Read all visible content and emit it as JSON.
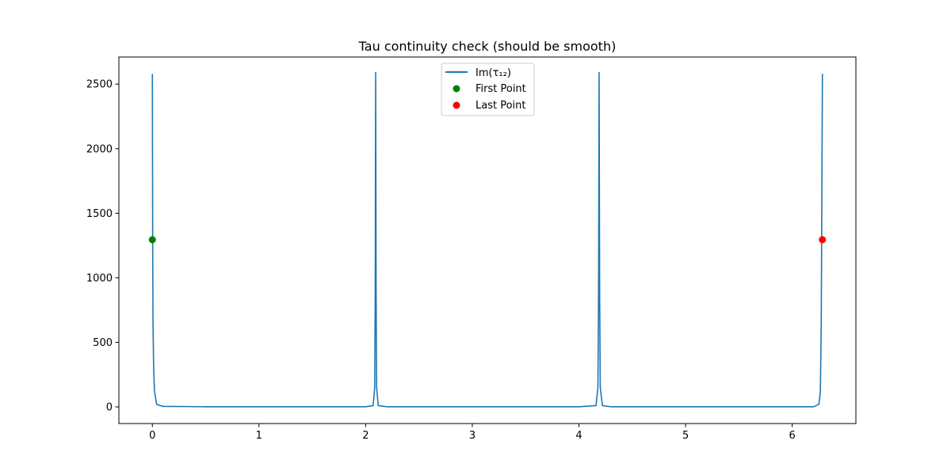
{
  "chart_data": {
    "type": "line",
    "title": "Tau continuity check (should be smooth)",
    "xlabel": "",
    "ylabel": "",
    "xlim": [
      -0.314,
      6.597
    ],
    "ylim": [
      -129,
      2710
    ],
    "xticks": [
      0,
      1,
      2,
      3,
      4,
      5,
      6
    ],
    "yticks": [
      0,
      500,
      1000,
      1500,
      2000,
      2500
    ],
    "grid": false,
    "legend_placement": "upper center",
    "series": [
      {
        "name": "Im(τ₁₂)",
        "kind": "line",
        "color": "#1f77b4",
        "x": [
          0,
          0.003,
          0.006,
          0.012,
          0.02,
          0.04,
          0.1,
          0.5,
          1.0,
          1.5,
          2.0,
          2.07,
          2.085,
          2.09,
          2.094,
          2.098,
          2.103,
          2.118,
          2.2,
          2.6,
          3.0,
          3.5,
          4.0,
          4.16,
          4.178,
          4.184,
          4.189,
          4.194,
          4.2,
          4.22,
          4.3,
          4.8,
          5.3,
          5.8,
          6.2,
          6.25,
          6.264,
          6.272,
          6.276,
          6.283
        ],
        "y": [
          2580,
          1300,
          650,
          300,
          120,
          20,
          4,
          1,
          1,
          1,
          1,
          10,
          150,
          900,
          2590,
          900,
          150,
          10,
          1,
          1,
          1,
          1,
          1,
          10,
          150,
          900,
          2590,
          900,
          150,
          10,
          1,
          1,
          1,
          1,
          1,
          20,
          120,
          650,
          1300,
          2580
        ]
      },
      {
        "name": "First Point",
        "kind": "scatter",
        "color": "#008000",
        "x": [
          0
        ],
        "y": [
          1295
        ]
      },
      {
        "name": "Last Point",
        "kind": "scatter",
        "color": "#ff0000",
        "x": [
          6.283
        ],
        "y": [
          1295
        ]
      }
    ]
  }
}
